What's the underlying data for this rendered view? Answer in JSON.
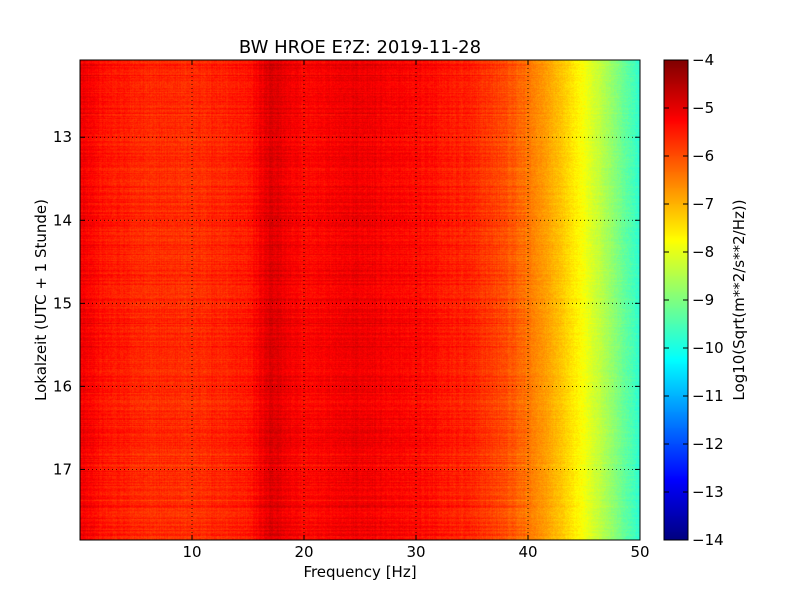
{
  "chart_data": {
    "type": "heatmap",
    "title": "BW HROE E?Z: 2019-11-28",
    "xlabel": "Frequency [Hz]",
    "ylabel": "Lokalzeit (UTC + 1 Stunde)",
    "xlim": [
      0,
      50
    ],
    "ylim": [
      12.07,
      17.85
    ],
    "y_inverted": true,
    "x_ticks": [
      10,
      20,
      30,
      40,
      50
    ],
    "y_ticks": [
      13,
      14,
      15,
      16,
      17
    ],
    "grid": true,
    "colormap": "jet",
    "colorbar": {
      "label": "Log10(Sqrt(m**2/s**2/Hz))",
      "range": [
        -14,
        -4
      ],
      "ticks": [
        -4,
        -5,
        -6,
        -7,
        -8,
        -9,
        -10,
        -11,
        -12,
        -13,
        -14
      ],
      "tick_labels": [
        "−4",
        "−5",
        "−6",
        "−7",
        "−8",
        "−9",
        "−10",
        "−11",
        "−12",
        "−13",
        "−14"
      ]
    },
    "mean_spectrum": {
      "frequency_hz": [
        0,
        2,
        5,
        10,
        15,
        17,
        20,
        25,
        30,
        35,
        38,
        40,
        42,
        44,
        46,
        48,
        50
      ],
      "value": [
        -5.1,
        -5.4,
        -5.6,
        -5.7,
        -5.5,
        -4.9,
        -5.3,
        -5.1,
        -5.3,
        -5.6,
        -6.0,
        -6.4,
        -6.9,
        -7.5,
        -8.2,
        -9.0,
        -9.8
      ]
    }
  }
}
